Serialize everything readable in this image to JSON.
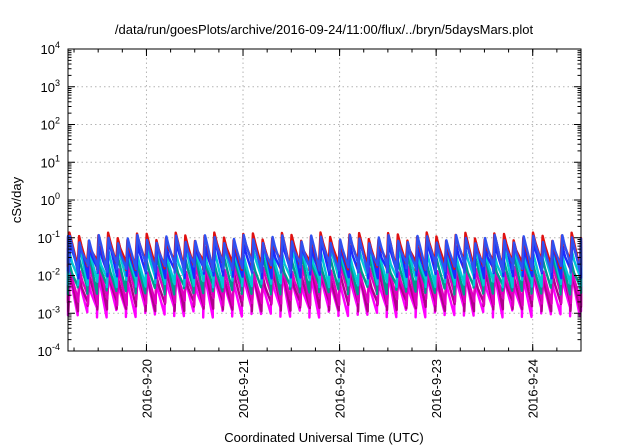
{
  "chart_data": {
    "type": "line",
    "title": "/data/run/goesPlots/archive/2016-09-24/11:00/flux/../bryn/5daysMars.plot",
    "xlabel": "Coordinated Universal Time (UTC)",
    "ylabel": "cSv/day",
    "x_tick_labels": [
      "2016-9-20",
      "2016-9-21",
      "2016-9-22",
      "2016-9-23",
      "2016-9-24"
    ],
    "x_range": [
      "2016-09-19 04:30",
      "2016-09-24 12:00"
    ],
    "x_ticks": [
      "2016-09-20 00:00",
      "2016-09-21 00:00",
      "2016-09-22 00:00",
      "2016-09-23 00:00",
      "2016-09-24 00:00"
    ],
    "y_scale": "log",
    "ylim": [
      0.0001,
      10000
    ],
    "y_ticks": [
      0.0001,
      0.001,
      0.01,
      0.1,
      1,
      10,
      100,
      1000,
      10000
    ],
    "y_tick_labels": [
      {
        "base": "10",
        "exp": "-4"
      },
      {
        "base": "10",
        "exp": "-3"
      },
      {
        "base": "10",
        "exp": "-2"
      },
      {
        "base": "10",
        "exp": "-1"
      },
      {
        "base": "10",
        "exp": "0"
      },
      {
        "base": "10",
        "exp": "1"
      },
      {
        "base": "10",
        "exp": "2"
      },
      {
        "base": "10",
        "exp": "3"
      },
      {
        "base": "10",
        "exp": "4"
      }
    ],
    "grid": true,
    "legend": "none",
    "cycle_hours": 2.4,
    "series": [
      {
        "color": "#ff00ff",
        "peak": 0.008,
        "trough": 0.0011
      },
      {
        "color": "#b0008c",
        "peak": 0.011,
        "trough": 0.0016
      },
      {
        "color": "#e000c0",
        "peak": 0.016,
        "trough": 0.0023
      },
      {
        "color": "#009a8c",
        "peak": 0.028,
        "trough": 0.0045
      },
      {
        "color": "#00c8d8",
        "peak": 0.045,
        "trough": 0.007
      },
      {
        "color": "#1a2cff",
        "peak": 0.07,
        "trough": 0.012
      },
      {
        "color": "#e01010",
        "peak": 0.11,
        "trough": 0.02
      },
      {
        "color": "#3050f0",
        "peak": 0.095,
        "trough": 0.017
      }
    ]
  }
}
